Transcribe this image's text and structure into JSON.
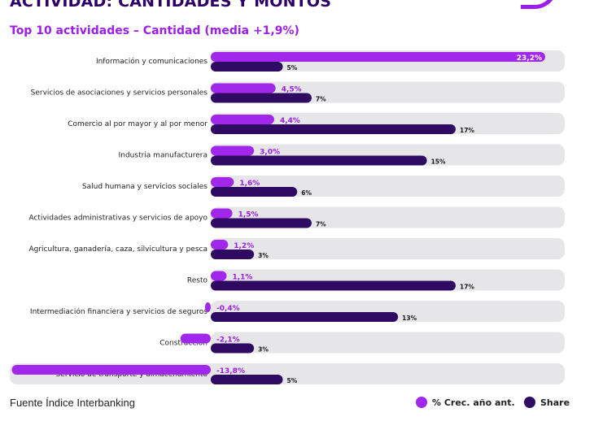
{
  "title": "ACTIVIDAD: CANTIDADES Y MONTOS",
  "subtitle": "Top 10 actividades – Cantidad (media +1,9%)",
  "source": "Fuente Índice Interbanking",
  "legend": {
    "growth_label": "% Crec. año ant.",
    "share_label": "Share"
  },
  "colors": {
    "growth": "#a127ea",
    "share": "#2e0a63",
    "track": "#e6e6e8",
    "growth_text": "#9b1fe8"
  },
  "chart_data": {
    "type": "bar",
    "orientation": "horizontal",
    "categories": [
      "Información y comunicaciones",
      "Servicios de asociaciones y servicios personales",
      "Comercio al por mayor y al por menor",
      "Industria manufacturera",
      "Salud humana y servicios sociales",
      "Actividades administrativas y servicios de apoyo",
      "Agricultura, ganadería, caza, silvicultura y pesca",
      "Resto",
      "Intermediación financiera y servicios de seguros",
      "Construcción",
      "Servicio de transporte y almacenamiento"
    ],
    "series": [
      {
        "name": "% Crec. año ant.",
        "values": [
          23.2,
          4.5,
          4.4,
          3.0,
          1.6,
          1.5,
          1.2,
          1.1,
          -0.4,
          -2.1,
          -13.8
        ],
        "labels": [
          "23,2%",
          "4,5%",
          "4,4%",
          "3,0%",
          "1,6%",
          "1,5%",
          "1,2%",
          "1,1%",
          "-0,4%",
          "-2,1%",
          "-13,8%"
        ]
      },
      {
        "name": "Share",
        "values": [
          5,
          7,
          17,
          15,
          6,
          7,
          3,
          17,
          13,
          3,
          5
        ],
        "labels": [
          "5%",
          "7%",
          "17%",
          "15%",
          "6%",
          "7%",
          "3%",
          "17%",
          "13%",
          "3%",
          "5%"
        ]
      }
    ]
  }
}
